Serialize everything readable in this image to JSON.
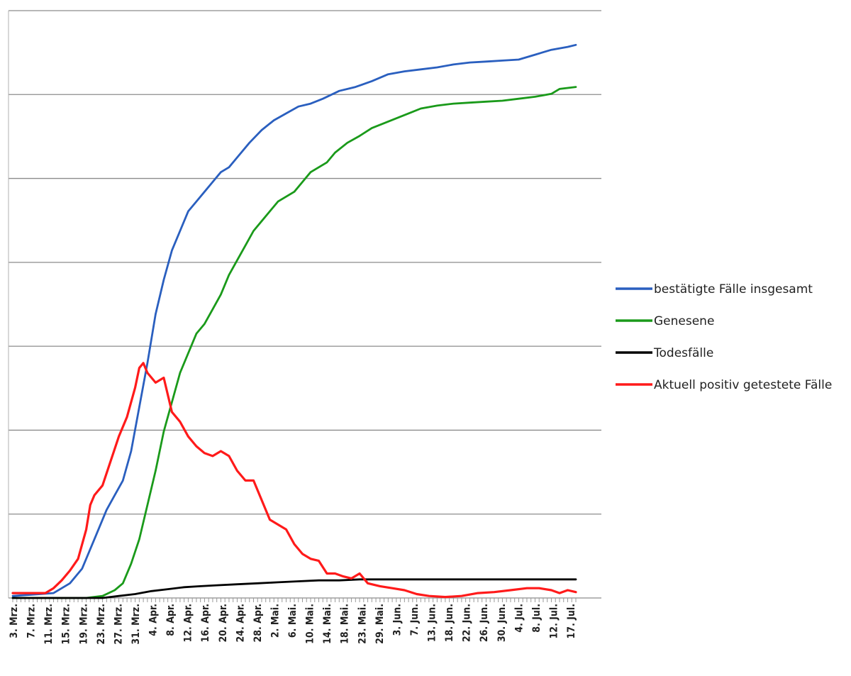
{
  "chart_data": {
    "type": "line",
    "title": "",
    "xlabel": "",
    "ylabel": "",
    "grid": true,
    "legend_position": "right",
    "x_start": "3. Mrz.",
    "x_end": "19. Jul.",
    "x_tick_labels": [
      "3. Mrz.",
      "7. Mrz.",
      "11. Mrz.",
      "15. Mrz.",
      "19. Mrz.",
      "23. Mrz.",
      "27. Mrz.",
      "31. Mrz.",
      "4. Apr.",
      "8. Apr.",
      "12. Apr.",
      "16. Apr.",
      "20. Apr.",
      "24. Apr.",
      "28. Apr.",
      "2. Mai.",
      "6. Mai.",
      "10. Mai.",
      "14. Mai.",
      "18. Mai.",
      "23. Mai.",
      "29. Mai.",
      "3. Jun.",
      "7. Jun.",
      "13. Jun.",
      "18. Jun.",
      "22. Jun.",
      "26. Jun.",
      "30. Jun.",
      "4. Jul.",
      "8. Jul.",
      "12. Jul.",
      "17. Jul."
    ],
    "y_grid_lines": 7,
    "ylim": [
      0,
      6
    ],
    "series": [
      {
        "name": "bestätigte Fälle insgesamt",
        "color": "#2a5fbf",
        "points": [
          [
            0,
            0.02
          ],
          [
            10,
            0.05
          ],
          [
            14,
            0.15
          ],
          [
            17,
            0.3
          ],
          [
            20,
            0.6
          ],
          [
            23,
            0.9
          ],
          [
            25,
            1.05
          ],
          [
            27,
            1.2
          ],
          [
            29,
            1.5
          ],
          [
            31,
            1.95
          ],
          [
            33,
            2.4
          ],
          [
            35,
            2.9
          ],
          [
            37,
            3.25
          ],
          [
            39,
            3.55
          ],
          [
            41,
            3.75
          ],
          [
            43,
            3.95
          ],
          [
            45,
            4.05
          ],
          [
            47,
            4.15
          ],
          [
            49,
            4.25
          ],
          [
            51,
            4.35
          ],
          [
            53,
            4.4
          ],
          [
            55,
            4.5
          ],
          [
            58,
            4.65
          ],
          [
            61,
            4.78
          ],
          [
            64,
            4.88
          ],
          [
            67,
            4.95
          ],
          [
            70,
            5.02
          ],
          [
            73,
            5.05
          ],
          [
            76,
            5.1
          ],
          [
            80,
            5.18
          ],
          [
            84,
            5.22
          ],
          [
            88,
            5.28
          ],
          [
            92,
            5.35
          ],
          [
            96,
            5.38
          ],
          [
            100,
            5.4
          ],
          [
            104,
            5.42
          ],
          [
            108,
            5.45
          ],
          [
            112,
            5.47
          ],
          [
            116,
            5.48
          ],
          [
            120,
            5.49
          ],
          [
            124,
            5.5
          ],
          [
            128,
            5.55
          ],
          [
            132,
            5.6
          ],
          [
            136,
            5.63
          ],
          [
            138,
            5.65
          ]
        ]
      },
      {
        "name": "Genesene",
        "color": "#1a9a1a",
        "points": [
          [
            0,
            0.0
          ],
          [
            18,
            0.0
          ],
          [
            22,
            0.02
          ],
          [
            25,
            0.08
          ],
          [
            27,
            0.15
          ],
          [
            29,
            0.35
          ],
          [
            31,
            0.6
          ],
          [
            33,
            0.95
          ],
          [
            35,
            1.3
          ],
          [
            37,
            1.7
          ],
          [
            39,
            2.0
          ],
          [
            41,
            2.3
          ],
          [
            43,
            2.5
          ],
          [
            45,
            2.7
          ],
          [
            47,
            2.8
          ],
          [
            49,
            2.95
          ],
          [
            51,
            3.1
          ],
          [
            53,
            3.3
          ],
          [
            55,
            3.45
          ],
          [
            57,
            3.6
          ],
          [
            59,
            3.75
          ],
          [
            61,
            3.85
          ],
          [
            63,
            3.95
          ],
          [
            65,
            4.05
          ],
          [
            67,
            4.1
          ],
          [
            69,
            4.15
          ],
          [
            71,
            4.25
          ],
          [
            73,
            4.35
          ],
          [
            75,
            4.4
          ],
          [
            77,
            4.45
          ],
          [
            79,
            4.55
          ],
          [
            82,
            4.65
          ],
          [
            85,
            4.72
          ],
          [
            88,
            4.8
          ],
          [
            91,
            4.85
          ],
          [
            94,
            4.9
          ],
          [
            97,
            4.95
          ],
          [
            100,
            5.0
          ],
          [
            104,
            5.03
          ],
          [
            108,
            5.05
          ],
          [
            112,
            5.06
          ],
          [
            116,
            5.07
          ],
          [
            120,
            5.08
          ],
          [
            124,
            5.1
          ],
          [
            128,
            5.12
          ],
          [
            132,
            5.15
          ],
          [
            134,
            5.2
          ],
          [
            138,
            5.22
          ]
        ]
      },
      {
        "name": "Todesfälle",
        "color": "#000000",
        "points": [
          [
            0,
            0.0
          ],
          [
            22,
            0.0
          ],
          [
            26,
            0.02
          ],
          [
            30,
            0.04
          ],
          [
            34,
            0.07
          ],
          [
            38,
            0.09
          ],
          [
            42,
            0.11
          ],
          [
            46,
            0.12
          ],
          [
            50,
            0.13
          ],
          [
            55,
            0.14
          ],
          [
            60,
            0.15
          ],
          [
            65,
            0.16
          ],
          [
            70,
            0.17
          ],
          [
            75,
            0.18
          ],
          [
            80,
            0.18
          ],
          [
            85,
            0.19
          ],
          [
            90,
            0.19
          ],
          [
            100,
            0.19
          ],
          [
            110,
            0.19
          ],
          [
            120,
            0.19
          ],
          [
            130,
            0.19
          ],
          [
            138,
            0.19
          ]
        ]
      },
      {
        "name": "Aktuell positiv getestete Fälle",
        "color": "#ff1a1a",
        "points": [
          [
            0,
            0.05
          ],
          [
            8,
            0.05
          ],
          [
            10,
            0.1
          ],
          [
            12,
            0.18
          ],
          [
            14,
            0.28
          ],
          [
            16,
            0.4
          ],
          [
            18,
            0.7
          ],
          [
            19,
            0.95
          ],
          [
            20,
            1.05
          ],
          [
            22,
            1.15
          ],
          [
            24,
            1.4
          ],
          [
            26,
            1.65
          ],
          [
            28,
            1.85
          ],
          [
            30,
            2.15
          ],
          [
            31,
            2.35
          ],
          [
            32,
            2.4
          ],
          [
            33,
            2.3
          ],
          [
            35,
            2.2
          ],
          [
            37,
            2.25
          ],
          [
            39,
            1.9
          ],
          [
            41,
            1.8
          ],
          [
            43,
            1.65
          ],
          [
            45,
            1.55
          ],
          [
            47,
            1.48
          ],
          [
            49,
            1.45
          ],
          [
            51,
            1.5
          ],
          [
            53,
            1.45
          ],
          [
            55,
            1.3
          ],
          [
            57,
            1.2
          ],
          [
            59,
            1.2
          ],
          [
            61,
            1.0
          ],
          [
            63,
            0.8
          ],
          [
            65,
            0.75
          ],
          [
            67,
            0.7
          ],
          [
            69,
            0.55
          ],
          [
            71,
            0.45
          ],
          [
            73,
            0.4
          ],
          [
            75,
            0.38
          ],
          [
            77,
            0.25
          ],
          [
            79,
            0.25
          ],
          [
            81,
            0.22
          ],
          [
            83,
            0.2
          ],
          [
            85,
            0.25
          ],
          [
            87,
            0.15
          ],
          [
            90,
            0.12
          ],
          [
            93,
            0.1
          ],
          [
            96,
            0.08
          ],
          [
            99,
            0.04
          ],
          [
            102,
            0.02
          ],
          [
            106,
            0.01
          ],
          [
            110,
            0.02
          ],
          [
            114,
            0.05
          ],
          [
            118,
            0.06
          ],
          [
            122,
            0.08
          ],
          [
            126,
            0.1
          ],
          [
            129,
            0.1
          ],
          [
            132,
            0.08
          ],
          [
            134,
            0.05
          ],
          [
            136,
            0.08
          ],
          [
            138,
            0.06
          ]
        ]
      }
    ]
  }
}
